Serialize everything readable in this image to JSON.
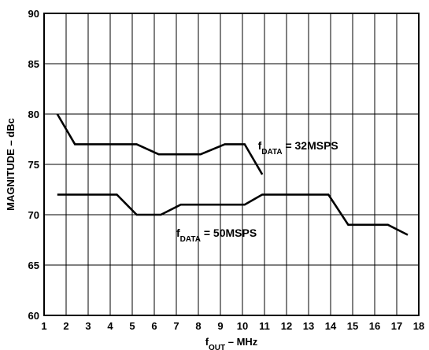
{
  "chart_data": {
    "type": "line",
    "xlabel": "f",
    "xlabel_sub": "OUT",
    "xlabel_suffix": " – MHz",
    "ylabel": "MAGNITUDE – dBc",
    "xlim": [
      1,
      18
    ],
    "ylim": [
      60,
      90
    ],
    "x_ticks": [
      "1",
      "2",
      "3",
      "4",
      "5",
      "6",
      "7",
      "8",
      "9",
      "10",
      "11",
      "12",
      "13",
      "14",
      "15",
      "16",
      "17",
      "18"
    ],
    "y_ticks": [
      "60",
      "65",
      "70",
      "75",
      "80",
      "85",
      "90"
    ],
    "grid": true,
    "series": [
      {
        "name": "f",
        "name_sub": "DATA",
        "name_suffix": " = 32MSPS",
        "label_x": 10.7,
        "label_y": 76.5,
        "x": [
          1.6,
          2.4,
          5.2,
          6.2,
          8.1,
          9.2,
          10.1,
          10.9
        ],
        "y": [
          80,
          77,
          77,
          76,
          76,
          77,
          77,
          74
        ]
      },
      {
        "name": "f",
        "name_sub": "DATA",
        "name_suffix": " = 50MSPS",
        "label_x": 7.0,
        "label_y": 67.8,
        "x": [
          1.6,
          4.3,
          5.2,
          6.3,
          7.2,
          10.1,
          10.9,
          13.9,
          14.8,
          16.6,
          17.5
        ],
        "y": [
          72,
          72,
          70,
          70,
          71,
          71,
          72,
          72,
          69,
          69,
          68
        ]
      }
    ]
  }
}
